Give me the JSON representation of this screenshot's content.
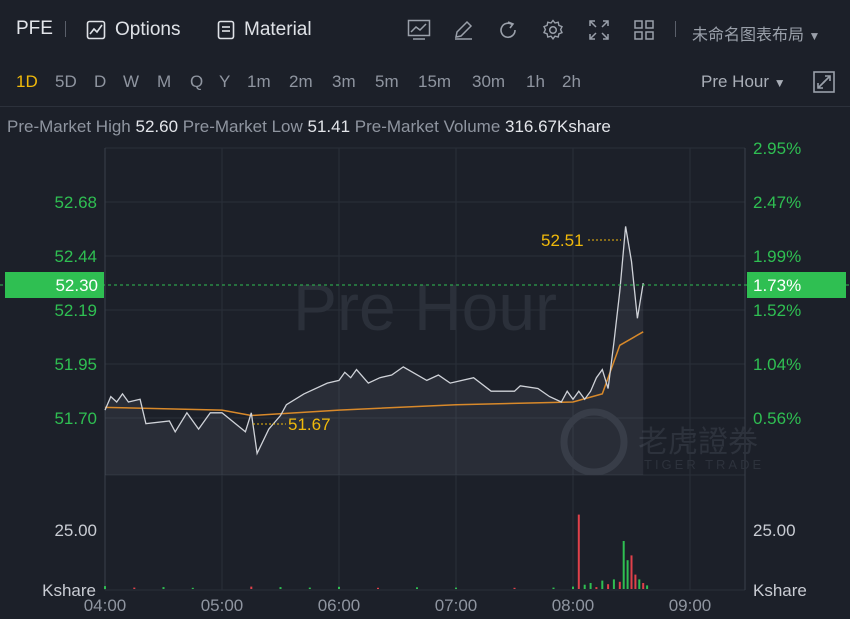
{
  "toolbar": {
    "symbol": "PFE",
    "options_label": "Options",
    "material_label": "Material",
    "layout_name": "未命名图表布局",
    "icons": [
      "chart-icon",
      "edit-icon",
      "refresh-icon",
      "gear-icon",
      "fullscreen-icon",
      "grid-icon"
    ]
  },
  "timeframes": [
    "1D",
    "5D",
    "D",
    "W",
    "M",
    "Q",
    "Y",
    "1m",
    "2m",
    "3m",
    "5m",
    "15m",
    "30m",
    "1h",
    "2h"
  ],
  "active_timeframe": "1D",
  "session_label": "Pre Hour",
  "stats": {
    "high_label": "Pre-Market High",
    "high_value": "52.60",
    "low_label": "Pre-Market Low",
    "low_value": "51.41",
    "volume_label": "Pre-Market Volume",
    "volume_value": "316.67Kshare"
  },
  "watermark": "Pre Hour",
  "brand": {
    "name": "老虎證券",
    "sub": "TIGER TRADE"
  },
  "colors": {
    "up": "#2fbf52",
    "down": "#e0414a",
    "accent": "#f0b90b",
    "avg": "#d8892a",
    "price_line": "#cfd2d8",
    "bg": "#1c2029"
  },
  "chart_data": {
    "type": "line",
    "x_ticks": [
      "04:00",
      "05:00",
      "06:00",
      "07:00",
      "08:00",
      "09:00"
    ],
    "price_axis_left": [
      "52.68",
      "52.44",
      "52.19",
      "51.95",
      "51.70"
    ],
    "percent_axis_right": [
      "2.95%",
      "2.47%",
      "1.99%",
      "1.52%",
      "1.04%",
      "0.56%"
    ],
    "current_price": "52.30",
    "current_percent": "1.73%",
    "high_marker": "52.51",
    "low_marker": "51.67",
    "volume_axis_label": "25.00",
    "volume_unit": "Kshare",
    "ylim": [
      51.59,
      52.8
    ],
    "price_series": [
      {
        "t": "04:00",
        "v": 51.83
      },
      {
        "t": "04:03",
        "v": 51.88
      },
      {
        "t": "04:06",
        "v": 51.86
      },
      {
        "t": "04:09",
        "v": 51.89
      },
      {
        "t": "04:12",
        "v": 51.86
      },
      {
        "t": "04:18",
        "v": 51.87
      },
      {
        "t": "04:21",
        "v": 51.78
      },
      {
        "t": "04:33",
        "v": 51.79
      },
      {
        "t": "04:36",
        "v": 51.75
      },
      {
        "t": "04:42",
        "v": 51.82
      },
      {
        "t": "04:48",
        "v": 51.76
      },
      {
        "t": "04:54",
        "v": 51.82
      },
      {
        "t": "05:00",
        "v": 51.82
      },
      {
        "t": "05:12",
        "v": 51.75
      },
      {
        "t": "05:15",
        "v": 51.82
      },
      {
        "t": "05:18",
        "v": 51.67
      },
      {
        "t": "05:24",
        "v": 51.76
      },
      {
        "t": "05:30",
        "v": 51.81
      },
      {
        "t": "05:33",
        "v": 51.85
      },
      {
        "t": "05:42",
        "v": 51.89
      },
      {
        "t": "05:54",
        "v": 51.93
      },
      {
        "t": "06:00",
        "v": 51.94
      },
      {
        "t": "06:03",
        "v": 51.97
      },
      {
        "t": "06:06",
        "v": 51.95
      },
      {
        "t": "06:09",
        "v": 51.98
      },
      {
        "t": "06:15",
        "v": 51.93
      },
      {
        "t": "06:21",
        "v": 51.95
      },
      {
        "t": "06:27",
        "v": 51.96
      },
      {
        "t": "06:33",
        "v": 51.99
      },
      {
        "t": "06:45",
        "v": 51.94
      },
      {
        "t": "06:51",
        "v": 51.96
      },
      {
        "t": "06:57",
        "v": 51.93
      },
      {
        "t": "07:09",
        "v": 51.95
      },
      {
        "t": "07:18",
        "v": 51.9
      },
      {
        "t": "07:30",
        "v": 51.9
      },
      {
        "t": "07:33",
        "v": 51.92
      },
      {
        "t": "07:42",
        "v": 51.91
      },
      {
        "t": "07:48",
        "v": 51.88
      },
      {
        "t": "07:54",
        "v": 51.86
      },
      {
        "t": "07:57",
        "v": 51.9
      },
      {
        "t": "08:00",
        "v": 51.87
      },
      {
        "t": "08:03",
        "v": 51.9
      },
      {
        "t": "08:06",
        "v": 51.87
      },
      {
        "t": "08:09",
        "v": 51.9
      },
      {
        "t": "08:12",
        "v": 51.95
      },
      {
        "t": "08:15",
        "v": 51.98
      },
      {
        "t": "08:18",
        "v": 51.91
      },
      {
        "t": "08:21",
        "v": 52.08
      },
      {
        "t": "08:24",
        "v": 52.27
      },
      {
        "t": "08:27",
        "v": 52.51
      },
      {
        "t": "08:30",
        "v": 52.38
      },
      {
        "t": "08:33",
        "v": 52.17
      },
      {
        "t": "08:36",
        "v": 52.3
      }
    ],
    "avg_series": [
      {
        "t": "04:00",
        "v": 51.84
      },
      {
        "t": "05:00",
        "v": 51.83
      },
      {
        "t": "05:15",
        "v": 51.81
      },
      {
        "t": "06:00",
        "v": 51.83
      },
      {
        "t": "07:00",
        "v": 51.85
      },
      {
        "t": "08:00",
        "v": 51.86
      },
      {
        "t": "08:15",
        "v": 51.89
      },
      {
        "t": "08:24",
        "v": 52.07
      },
      {
        "t": "08:36",
        "v": 52.12
      }
    ],
    "volume_series": [
      {
        "t": "04:00",
        "v": 1.2,
        "dir": "up"
      },
      {
        "t": "04:15",
        "v": 0.6,
        "dir": "down"
      },
      {
        "t": "04:30",
        "v": 0.8,
        "dir": "up"
      },
      {
        "t": "04:45",
        "v": 0.5,
        "dir": "up"
      },
      {
        "t": "05:15",
        "v": 1.0,
        "dir": "down"
      },
      {
        "t": "05:30",
        "v": 0.8,
        "dir": "up"
      },
      {
        "t": "05:45",
        "v": 0.6,
        "dir": "up"
      },
      {
        "t": "06:00",
        "v": 0.9,
        "dir": "up"
      },
      {
        "t": "06:20",
        "v": 0.5,
        "dir": "down"
      },
      {
        "t": "06:40",
        "v": 0.7,
        "dir": "up"
      },
      {
        "t": "07:00",
        "v": 0.6,
        "dir": "up"
      },
      {
        "t": "07:30",
        "v": 0.5,
        "dir": "down"
      },
      {
        "t": "07:50",
        "v": 0.6,
        "dir": "up"
      },
      {
        "t": "08:00",
        "v": 1.0,
        "dir": "up"
      },
      {
        "t": "08:03",
        "v": 31.0,
        "dir": "down"
      },
      {
        "t": "08:06",
        "v": 1.8,
        "dir": "up"
      },
      {
        "t": "08:09",
        "v": 2.5,
        "dir": "up"
      },
      {
        "t": "08:12",
        "v": 0.8,
        "dir": "down"
      },
      {
        "t": "08:15",
        "v": 3.5,
        "dir": "up"
      },
      {
        "t": "08:18",
        "v": 2.0,
        "dir": "down"
      },
      {
        "t": "08:21",
        "v": 4.0,
        "dir": "up"
      },
      {
        "t": "08:24",
        "v": 3.0,
        "dir": "down"
      },
      {
        "t": "08:26",
        "v": 20.0,
        "dir": "up"
      },
      {
        "t": "08:28",
        "v": 12.0,
        "dir": "up"
      },
      {
        "t": "08:30",
        "v": 14.0,
        "dir": "down"
      },
      {
        "t": "08:32",
        "v": 6.0,
        "dir": "down"
      },
      {
        "t": "08:34",
        "v": 4.0,
        "dir": "up"
      },
      {
        "t": "08:36",
        "v": 2.5,
        "dir": "down"
      },
      {
        "t": "08:38",
        "v": 1.5,
        "dir": "up"
      }
    ]
  }
}
